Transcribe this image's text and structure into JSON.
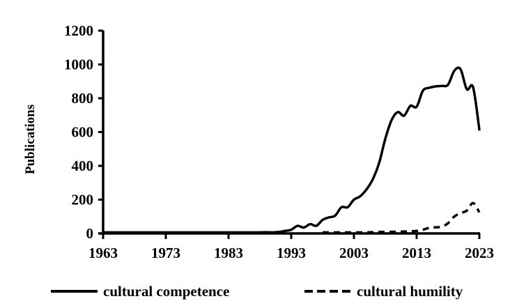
{
  "chart_data": {
    "type": "line",
    "title": "",
    "xlabel": "",
    "ylabel": "Publications",
    "xlim": [
      1963,
      2023
    ],
    "ylim": [
      0,
      1200
    ],
    "x_ticks": [
      "1963",
      "1973",
      "1983",
      "1993",
      "2003",
      "2013",
      "2023"
    ],
    "y_ticks": [
      "0",
      "200",
      "400",
      "600",
      "800",
      "1000",
      "1200"
    ],
    "grid": false,
    "legend_position": "bottom",
    "series": [
      {
        "name": "cultural competence",
        "style": "solid",
        "color": "#000000",
        "x": [
          1963,
          1965,
          1967,
          1969,
          1971,
          1973,
          1975,
          1976,
          1977,
          1979,
          1981,
          1983,
          1984,
          1985,
          1987,
          1989,
          1990,
          1991,
          1992,
          1993,
          1994,
          1995,
          1996,
          1997,
          1998,
          1999,
          2000,
          2001,
          2002,
          2003,
          2004,
          2005,
          2006,
          2007,
          2008,
          2009,
          2010,
          2011,
          2012,
          2013,
          2014,
          2015,
          2016,
          2017,
          2018,
          2019,
          2020,
          2021,
          2022,
          2023
        ],
        "values": [
          0,
          0,
          0,
          0,
          0,
          0,
          1,
          3,
          1,
          1,
          1,
          3,
          1,
          2,
          5,
          7,
          6,
          9,
          15,
          22,
          45,
          35,
          55,
          45,
          80,
          95,
          105,
          155,
          155,
          200,
          220,
          260,
          320,
          415,
          560,
          670,
          718,
          697,
          755,
          750,
          845,
          862,
          870,
          873,
          880,
          962,
          972,
          853,
          865,
          615
        ]
      },
      {
        "name": "cultural humility",
        "style": "dashed",
        "color": "#000000",
        "x": [
          1998,
          2000,
          2002,
          2004,
          2005,
          2006,
          2008,
          2010,
          2011,
          2012,
          2013,
          2014,
          2015,
          2016,
          2017,
          2018,
          2019,
          2020,
          2021,
          2022,
          2023
        ],
        "values": [
          0,
          1,
          2,
          3,
          5,
          8,
          9,
          10,
          11,
          13,
          15,
          22,
          33,
          36,
          40,
          60,
          100,
          120,
          135,
          180,
          125
        ]
      }
    ]
  },
  "legend": {
    "items": [
      {
        "label": "cultural competence",
        "style": "solid"
      },
      {
        "label": "cultural humility",
        "style": "dashed"
      }
    ]
  }
}
